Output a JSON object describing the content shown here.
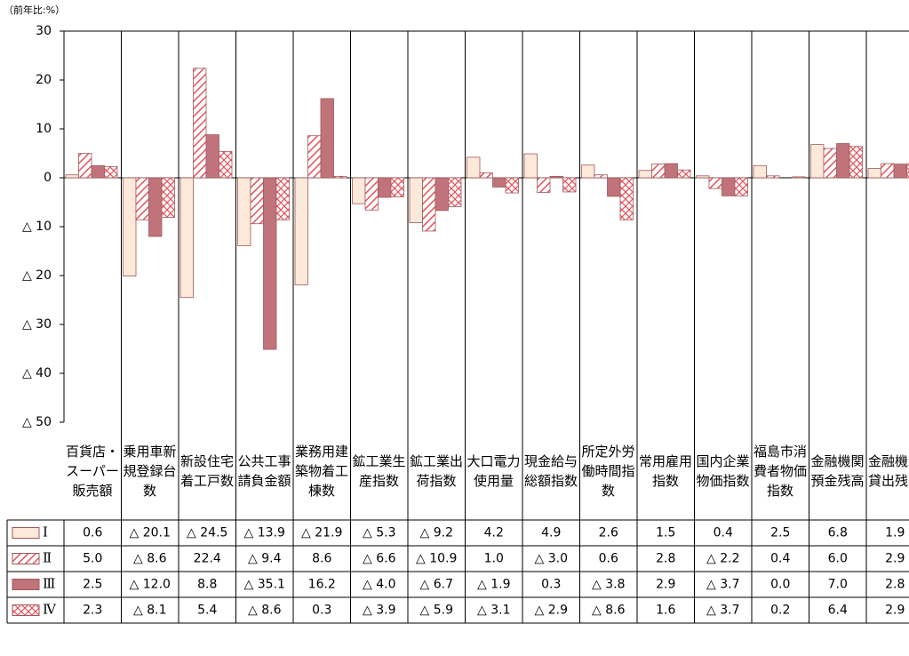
{
  "chart_data": {
    "type": "bar",
    "unit_label": "（前年比:%）",
    "categories": [
      "百貨店・スーパー販売額",
      "乗用車新規登録台数",
      "新設住宅着工戸数",
      "公共工事請負金額",
      "業務用建築物着工棟数",
      "鉱工業生産指数",
      "鉱工業出荷指数",
      "大口電力使用量",
      "現金給与総額指数",
      "所定外労働時間指数",
      "常用雇用指数",
      "国内企業物価指数",
      "福島市消費者物価指数",
      "金融機関預金残高",
      "金融機関貸出残高"
    ],
    "series": [
      {
        "name": "Ⅰ",
        "color": "#fde9d9",
        "pattern": "solid",
        "values": [
          0.6,
          -20.1,
          -24.5,
          -13.9,
          -21.9,
          -5.3,
          -9.2,
          4.2,
          4.9,
          2.6,
          1.5,
          0.4,
          2.5,
          6.8,
          1.9
        ],
        "value_labels": [
          "0.6",
          "△ 20.1",
          "△ 24.5",
          "△ 13.9",
          "△ 21.9",
          "△ 5.3",
          "△ 9.2",
          "4.2",
          "4.9",
          "2.6",
          "1.5",
          "0.4",
          "2.5",
          "6.8",
          "1.9"
        ]
      },
      {
        "name": "Ⅱ",
        "color": "#e8505a",
        "pattern": "diagonal",
        "values": [
          5.0,
          -8.6,
          22.4,
          -9.4,
          8.6,
          -6.6,
          -10.9,
          1.0,
          -3.0,
          0.6,
          2.8,
          -2.2,
          0.4,
          6.0,
          2.9
        ],
        "value_labels": [
          "5.0",
          "△ 8.6",
          "22.4",
          "△ 9.4",
          "8.6",
          "△ 6.6",
          "△ 10.9",
          "1.0",
          "△ 3.0",
          "0.6",
          "2.8",
          "△ 2.2",
          "0.4",
          "6.0",
          "2.9"
        ]
      },
      {
        "name": "Ⅲ",
        "color": "#c0737b",
        "pattern": "solid",
        "values": [
          2.5,
          -12.0,
          8.8,
          -35.1,
          16.2,
          -4.0,
          -6.7,
          -1.9,
          0.3,
          -3.8,
          2.9,
          -3.7,
          0.0,
          7.0,
          2.8
        ],
        "value_labels": [
          "2.5",
          "△ 12.0",
          "8.8",
          "△ 35.1",
          "16.2",
          "△ 4.0",
          "△ 6.7",
          "△ 1.9",
          "0.3",
          "△ 3.8",
          "2.9",
          "△ 3.7",
          "0.0",
          "7.0",
          "2.8"
        ]
      },
      {
        "name": "Ⅳ",
        "color": "#e8505a",
        "pattern": "cross",
        "values": [
          2.3,
          -8.1,
          5.4,
          -8.6,
          0.3,
          -3.9,
          -5.9,
          -3.1,
          -2.9,
          -8.6,
          1.6,
          -3.7,
          0.2,
          6.4,
          2.9
        ],
        "value_labels": [
          "2.3",
          "△ 8.1",
          "5.4",
          "△ 8.6",
          "0.3",
          "△ 3.9",
          "△ 5.9",
          "△ 3.1",
          "△ 2.9",
          "△ 8.6",
          "1.6",
          "△ 3.7",
          "0.2",
          "6.4",
          "2.9"
        ]
      }
    ],
    "ylim": [
      -50,
      30
    ],
    "yticks": [
      30,
      20,
      10,
      0,
      {
        "value": -10,
        "label": "△ 10"
      },
      {
        "value": -20,
        "label": "△ 20"
      },
      {
        "value": -30,
        "label": "△ 30"
      },
      {
        "value": -40,
        "label": "△ 40"
      },
      {
        "value": -50,
        "label": "△ 50"
      }
    ]
  }
}
